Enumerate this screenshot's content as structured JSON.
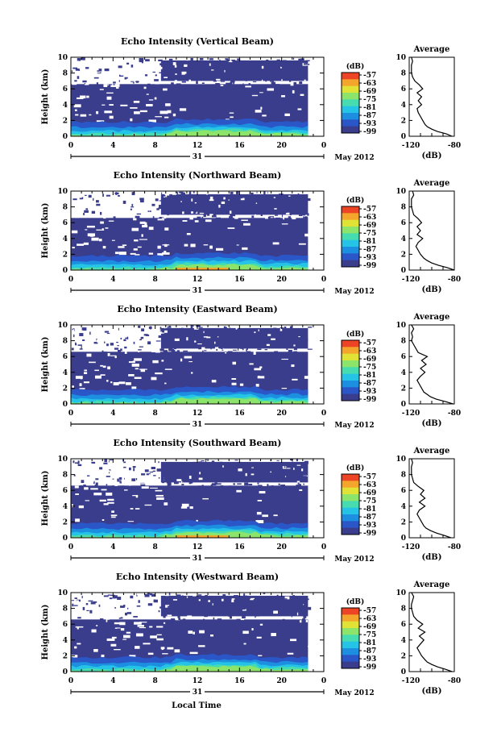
{
  "colors": {
    "background_echo": "#3a3c8c",
    "colorbar": [
      "#3a3c8c",
      "#2a56c8",
      "#1c8fe0",
      "#25c4e6",
      "#46dcb0",
      "#8ce46a",
      "#e0e236",
      "#f4a52c",
      "#ee4426"
    ],
    "line": "#000000"
  },
  "chart_data": [
    {
      "type": "heatmap",
      "title": "Echo Intensity (Vertical Beam)",
      "ylabel": "Height (km)",
      "ylim": [
        0,
        10
      ],
      "yticks": [
        "0",
        "2",
        "4",
        "6",
        "8",
        "10"
      ],
      "xlim": [
        0,
        24
      ],
      "xticks": [
        "0",
        "4",
        "8",
        "12",
        "16",
        "20",
        "0"
      ],
      "day_label": "31",
      "month_label": "May 2012",
      "colorbar": {
        "unit": "(dB)",
        "labels": [
          "-57",
          "-63",
          "-69",
          "-75",
          "-81",
          "-87",
          "-93",
          "-99"
        ]
      },
      "average": {
        "title": "Average",
        "xlabel": "(dB)",
        "xticks": [
          "-120",
          "-80"
        ],
        "xlim": [
          -120,
          -80
        ],
        "heights": [
          0,
          0.3,
          0.6,
          0.9,
          1.2,
          1.5,
          2,
          2.5,
          3,
          3.5,
          4,
          4.5,
          5,
          5.5,
          6,
          6.5,
          7,
          7.5,
          8,
          8.5,
          9,
          9.5,
          10
        ],
        "values": [
          -82,
          -87,
          -95,
          -100,
          -104,
          -106,
          -108,
          -110,
          -112,
          -113,
          -109,
          -112,
          -109,
          -113,
          -108,
          -111,
          -115,
          -117,
          -118,
          -118,
          -118,
          -117,
          -118
        ]
      }
    },
    {
      "type": "heatmap",
      "title": "Echo Intensity (Northward Beam)",
      "ylabel": "Height (km)",
      "ylim": [
        0,
        10
      ],
      "yticks": [
        "0",
        "2",
        "4",
        "6",
        "8",
        "10"
      ],
      "xlim": [
        0,
        24
      ],
      "xticks": [
        "0",
        "4",
        "8",
        "12",
        "16",
        "20",
        "0"
      ],
      "day_label": "31",
      "month_label": "May 2012",
      "colorbar": {
        "unit": "(dB)",
        "labels": [
          "-57",
          "-63",
          "-69",
          "-75",
          "-81",
          "-87",
          "-93",
          "-99"
        ]
      },
      "average": {
        "title": "Average",
        "xlabel": "(dB)",
        "xticks": [
          "-120",
          "-80"
        ],
        "xlim": [
          -120,
          -80
        ],
        "heights": [
          0,
          0.3,
          0.6,
          0.9,
          1.2,
          1.5,
          2,
          2.5,
          3,
          3.5,
          4,
          4.5,
          5,
          5.5,
          6,
          6.5,
          7,
          7.5,
          8,
          8.5,
          9,
          9.5,
          10
        ],
        "values": [
          -80,
          -86,
          -94,
          -100,
          -104,
          -107,
          -110,
          -112,
          -114,
          -112,
          -108,
          -113,
          -110,
          -113,
          -109,
          -112,
          -116,
          -117,
          -118,
          -118,
          -118,
          -116,
          -117
        ]
      }
    },
    {
      "type": "heatmap",
      "title": "Echo Intensity (Eastward Beam)",
      "ylabel": "Height (km)",
      "ylim": [
        0,
        10
      ],
      "yticks": [
        "0",
        "2",
        "4",
        "6",
        "8",
        "10"
      ],
      "xlim": [
        0,
        24
      ],
      "xticks": [
        "0",
        "4",
        "8",
        "12",
        "16",
        "20",
        "0"
      ],
      "day_label": "31",
      "month_label": "May 2012",
      "colorbar": {
        "unit": "(dB)",
        "labels": [
          "-57",
          "-63",
          "-69",
          "-75",
          "-81",
          "-87",
          "-93",
          "-99"
        ]
      },
      "average": {
        "title": "Average",
        "xlabel": "(dB)",
        "xticks": [
          "-120",
          "-80"
        ],
        "xlim": [
          -120,
          -80
        ],
        "heights": [
          0,
          0.3,
          0.6,
          0.9,
          1.2,
          1.5,
          2,
          2.5,
          3,
          3.5,
          4,
          4.5,
          5,
          5.5,
          6,
          6.5,
          7,
          7.5,
          8,
          8.5,
          9,
          9.5,
          10
        ],
        "values": [
          -81,
          -88,
          -96,
          -101,
          -104,
          -107,
          -109,
          -111,
          -113,
          -110,
          -106,
          -110,
          -105,
          -109,
          -104,
          -112,
          -114,
          -116,
          -118,
          -117,
          -118,
          -116,
          -118
        ]
      }
    },
    {
      "type": "heatmap",
      "title": "Echo Intensity (Southward Beam)",
      "ylabel": "Height (km)",
      "ylim": [
        0,
        10
      ],
      "yticks": [
        "0",
        "2",
        "4",
        "6",
        "8",
        "10"
      ],
      "xlim": [
        0,
        24
      ],
      "xticks": [
        "0",
        "4",
        "8",
        "12",
        "16",
        "20",
        "0"
      ],
      "day_label": "31",
      "month_label": "May 2012",
      "colorbar": {
        "unit": "(dB)",
        "labels": [
          "-57",
          "-63",
          "-69",
          "-75",
          "-81",
          "-87",
          "-93",
          "-99"
        ]
      },
      "average": {
        "title": "Average",
        "xlabel": "(dB)",
        "xticks": [
          "-120",
          "-80"
        ],
        "xlim": [
          -120,
          -80
        ],
        "heights": [
          0,
          0.3,
          0.6,
          0.9,
          1.2,
          1.5,
          2,
          2.5,
          3,
          3.5,
          4,
          4.5,
          5,
          5.5,
          6,
          6.5,
          7,
          7.5,
          8,
          8.5,
          9,
          9.5,
          10
        ],
        "values": [
          -83,
          -89,
          -96,
          -101,
          -105,
          -107,
          -109,
          -111,
          -113,
          -111,
          -106,
          -111,
          -106,
          -110,
          -107,
          -112,
          -116,
          -117,
          -118,
          -118,
          -118,
          -117,
          -118
        ]
      }
    },
    {
      "type": "heatmap",
      "title": "Echo Intensity (Westward Beam)",
      "ylabel": "Height (km)",
      "ylim": [
        0,
        10
      ],
      "yticks": [
        "0",
        "2",
        "4",
        "6",
        "8",
        "10"
      ],
      "xlim": [
        0,
        24
      ],
      "xticks": [
        "0",
        "4",
        "8",
        "12",
        "16",
        "20",
        "0"
      ],
      "day_label": "31",
      "month_label": "May 2012",
      "colorbar": {
        "unit": "(dB)",
        "labels": [
          "-57",
          "-63",
          "-69",
          "-75",
          "-81",
          "-87",
          "-93",
          "-99"
        ]
      },
      "average": {
        "title": "Average",
        "xlabel": "(dB)",
        "xticks": [
          "-120",
          "-80"
        ],
        "xlim": [
          -120,
          -80
        ],
        "heights": [
          0,
          0.3,
          0.6,
          0.9,
          1.2,
          1.5,
          2,
          2.5,
          3,
          3.5,
          4,
          4.5,
          5,
          5.5,
          6,
          6.5,
          7,
          7.5,
          8,
          8.5,
          9,
          9.5,
          10
        ],
        "values": [
          -82,
          -88,
          -95,
          -100,
          -104,
          -106,
          -109,
          -111,
          -113,
          -110,
          -107,
          -111,
          -106,
          -112,
          -108,
          -113,
          -116,
          -117,
          -118,
          -118,
          -117,
          -116,
          -118
        ]
      }
    }
  ],
  "xlabel_bottom": "Local Time"
}
